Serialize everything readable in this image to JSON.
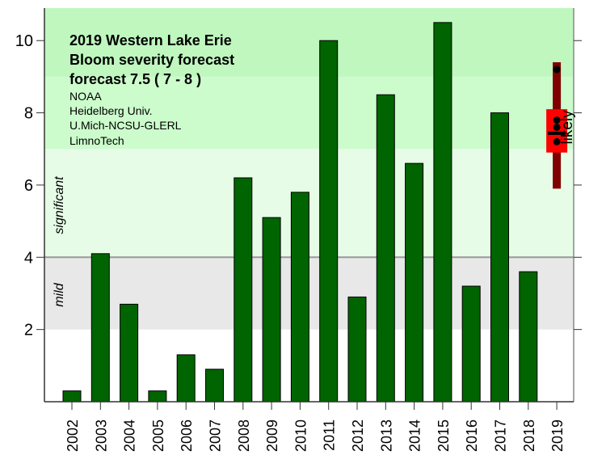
{
  "chart_data": {
    "type": "bar",
    "title_lines": [
      "2019  Western Lake Erie",
      "Bloom severity forecast",
      "forecast  7.5 ( 7 - 8 )"
    ],
    "credits": [
      "NOAA",
      "Heidelberg Univ.",
      "U.Mich-NCSU-GLERL",
      "LimnoTech"
    ],
    "xlabel": "",
    "ylabel": "",
    "ylim": [
      0,
      10.9
    ],
    "yticks": [
      2,
      4,
      6,
      8,
      10
    ],
    "categories": [
      "2002",
      "2003",
      "2004",
      "2005",
      "2006",
      "2007",
      "2008",
      "2009",
      "2010",
      "2011",
      "2012",
      "2013",
      "2014",
      "2015",
      "2016",
      "2017",
      "2018",
      "2019"
    ],
    "values": [
      0.3,
      4.1,
      2.7,
      0.3,
      1.3,
      0.9,
      6.2,
      5.1,
      5.8,
      10.0,
      2.9,
      8.5,
      6.6,
      10.5,
      3.2,
      8.0,
      3.6,
      null
    ],
    "bar_color": "#006400",
    "bands": [
      {
        "from": 2,
        "to": 4,
        "color": "#e8e8e8",
        "label": "mild"
      },
      {
        "from": 4,
        "to": 7,
        "color": "#e6fce6",
        "label": "significant"
      },
      {
        "from": 7,
        "to": 9,
        "color": "#ccfccc",
        "label": ""
      },
      {
        "from": 9,
        "to": 10.9,
        "color": "#bff7bf",
        "label": ""
      }
    ],
    "forecast": {
      "year": "2019",
      "value": 7.5,
      "likely_range": [
        6.9,
        8.1
      ],
      "full_range": [
        5.9,
        9.4
      ],
      "points": [
        9.2,
        7.8,
        7.6,
        7.2
      ],
      "label": "likely",
      "box_color": "#ff0000",
      "range_color": "#800000"
    },
    "grid": false
  }
}
